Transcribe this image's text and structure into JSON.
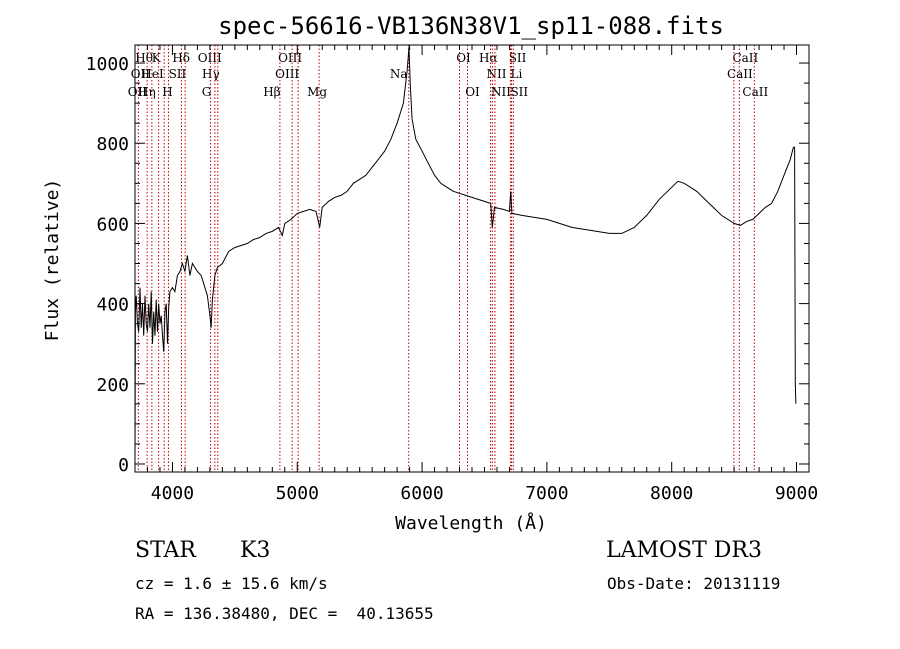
{
  "chart_data": {
    "type": "line",
    "title": "spec-56616-VB136N38V1_sp11-088.fits",
    "xlabel": "Wavelength (Å)",
    "ylabel": "Flux (relative)",
    "xlim": [
      3700,
      9100
    ],
    "ylim": [
      -20,
      1045
    ],
    "xticks": [
      4000,
      5000,
      6000,
      7000,
      8000,
      9000
    ],
    "yticks": [
      0,
      200,
      400,
      600,
      800,
      1000
    ],
    "grid": false,
    "series": [
      {
        "values": [
          [
            3700,
            0
          ],
          [
            3703,
            380
          ],
          [
            3710,
            420
          ],
          [
            3720,
            350
          ],
          [
            3730,
            330
          ],
          [
            3740,
            440
          ],
          [
            3750,
            340
          ],
          [
            3760,
            400
          ],
          [
            3770,
            320
          ],
          [
            3780,
            420
          ],
          [
            3790,
            350
          ],
          [
            3800,
            330
          ],
          [
            3810,
            400
          ],
          [
            3820,
            340
          ],
          [
            3830,
            430
          ],
          [
            3840,
            300
          ],
          [
            3850,
            380
          ],
          [
            3860,
            320
          ],
          [
            3870,
            410
          ],
          [
            3880,
            330
          ],
          [
            3890,
            400
          ],
          [
            3900,
            350
          ],
          [
            3910,
            370
          ],
          [
            3920,
            320
          ],
          [
            3930,
            280
          ],
          [
            3940,
            380
          ],
          [
            3950,
            400
          ],
          [
            3960,
            300
          ],
          [
            3970,
            390
          ],
          [
            3980,
            430
          ],
          [
            4000,
            440
          ],
          [
            4020,
            430
          ],
          [
            4040,
            470
          ],
          [
            4060,
            480
          ],
          [
            4080,
            500
          ],
          [
            4100,
            480
          ],
          [
            4120,
            520
          ],
          [
            4140,
            470
          ],
          [
            4160,
            500
          ],
          [
            4200,
            480
          ],
          [
            4230,
            470
          ],
          [
            4260,
            440
          ],
          [
            4280,
            420
          ],
          [
            4300,
            370
          ],
          [
            4310,
            340
          ],
          [
            4320,
            410
          ],
          [
            4340,
            470
          ],
          [
            4360,
            490
          ],
          [
            4400,
            500
          ],
          [
            4450,
            530
          ],
          [
            4500,
            540
          ],
          [
            4550,
            545
          ],
          [
            4600,
            550
          ],
          [
            4650,
            560
          ],
          [
            4700,
            565
          ],
          [
            4750,
            575
          ],
          [
            4800,
            580
          ],
          [
            4850,
            590
          ],
          [
            4880,
            570
          ],
          [
            4900,
            600
          ],
          [
            4950,
            610
          ],
          [
            5000,
            625
          ],
          [
            5050,
            630
          ],
          [
            5100,
            635
          ],
          [
            5150,
            630
          ],
          [
            5180,
            590
          ],
          [
            5200,
            640
          ],
          [
            5250,
            655
          ],
          [
            5300,
            665
          ],
          [
            5350,
            670
          ],
          [
            5400,
            680
          ],
          [
            5450,
            700
          ],
          [
            5500,
            710
          ],
          [
            5550,
            720
          ],
          [
            5600,
            740
          ],
          [
            5650,
            760
          ],
          [
            5700,
            780
          ],
          [
            5750,
            810
          ],
          [
            5800,
            850
          ],
          [
            5850,
            900
          ],
          [
            5880,
            980
          ],
          [
            5895,
            1040
          ],
          [
            5905,
            950
          ],
          [
            5920,
            860
          ],
          [
            5950,
            810
          ],
          [
            6000,
            780
          ],
          [
            6050,
            750
          ],
          [
            6100,
            720
          ],
          [
            6150,
            700
          ],
          [
            6200,
            690
          ],
          [
            6250,
            680
          ],
          [
            6300,
            675
          ],
          [
            6350,
            670
          ],
          [
            6400,
            665
          ],
          [
            6450,
            660
          ],
          [
            6500,
            655
          ],
          [
            6550,
            650
          ],
          [
            6563,
            590
          ],
          [
            6580,
            640
          ],
          [
            6650,
            635
          ],
          [
            6700,
            630
          ],
          [
            6710,
            680
          ],
          [
            6720,
            625
          ],
          [
            6800,
            620
          ],
          [
            6900,
            615
          ],
          [
            7000,
            610
          ],
          [
            7100,
            600
          ],
          [
            7200,
            590
          ],
          [
            7300,
            585
          ],
          [
            7400,
            580
          ],
          [
            7500,
            575
          ],
          [
            7600,
            575
          ],
          [
            7700,
            590
          ],
          [
            7800,
            620
          ],
          [
            7900,
            660
          ],
          [
            8000,
            690
          ],
          [
            8050,
            705
          ],
          [
            8100,
            700
          ],
          [
            8200,
            680
          ],
          [
            8300,
            650
          ],
          [
            8400,
            620
          ],
          [
            8500,
            600
          ],
          [
            8550,
            595
          ],
          [
            8600,
            605
          ],
          [
            8650,
            610
          ],
          [
            8700,
            625
          ],
          [
            8750,
            640
          ],
          [
            8800,
            650
          ],
          [
            8850,
            680
          ],
          [
            8900,
            720
          ],
          [
            8950,
            760
          ],
          [
            8975,
            790
          ],
          [
            8985,
            790
          ],
          [
            8990,
            200
          ],
          [
            8995,
            150
          ]
        ]
      }
    ],
    "line_markers": [
      {
        "label": "Hθ",
        "x": 3797,
        "row": 1,
        "dx": -3
      },
      {
        "label": "OII",
        "x": 3727,
        "row": 2,
        "dx": 2
      },
      {
        "label": "OII",
        "x": 3727,
        "row": 3,
        "dx": -1
      },
      {
        "label": "Hη",
        "x": 3835,
        "row": 3,
        "dx": -5
      },
      {
        "label": "K",
        "x": 3934,
        "row": 1,
        "dx": -8
      },
      {
        "label": "HeI",
        "x": 3889,
        "row": 2,
        "dx": -6
      },
      {
        "label": "H",
        "x": 3968,
        "row": 3,
        "dx": -1
      },
      {
        "label": "Hδ",
        "x": 4102,
        "row": 1,
        "dx": -4
      },
      {
        "label": "SII",
        "x": 4072,
        "row": 2,
        "dx": -4
      },
      {
        "label": "OIII",
        "x": 4363,
        "row": 1,
        "dx": -8
      },
      {
        "label": "Hγ",
        "x": 4340,
        "row": 2,
        "dx": -4
      },
      {
        "label": "G",
        "x": 4305,
        "row": 3,
        "dx": -4
      },
      {
        "label": "Hβ",
        "x": 4861,
        "row": 3,
        "dx": -8
      },
      {
        "label": "OIII",
        "x": 5007,
        "row": 1,
        "dx": -8
      },
      {
        "label": "OIII",
        "x": 4959,
        "row": 2,
        "dx": -5
      },
      {
        "label": "Mg",
        "x": 5175,
        "row": 3,
        "dx": -2
      },
      {
        "label": "Na",
        "x": 5893,
        "row": 2,
        "dx": -10
      },
      {
        "label": "OI",
        "x": 6300,
        "row": 1,
        "dx": 4
      },
      {
        "label": "OI",
        "x": 6364,
        "row": 3,
        "dx": 5
      },
      {
        "label": "Hα",
        "x": 6563,
        "row": 1,
        "dx": -4
      },
      {
        "label": "NII",
        "x": 6548,
        "row": 2,
        "dx": 6
      },
      {
        "label": "NII",
        "x": 6584,
        "row": 3,
        "dx": 6
      },
      {
        "label": "SII",
        "x": 6717,
        "row": 1,
        "dx": 6
      },
      {
        "label": "Li",
        "x": 6708,
        "row": 2,
        "dx": 6
      },
      {
        "label": "SII",
        "x": 6731,
        "row": 3,
        "dx": 6
      },
      {
        "label": "CaII",
        "x": 8542,
        "row": 1,
        "dx": 6
      },
      {
        "label": "CaII",
        "x": 8498,
        "row": 2,
        "dx": 6
      },
      {
        "label": "CaII",
        "x": 8662,
        "row": 3,
        "dx": 1
      }
    ]
  },
  "info": {
    "class": "STAR",
    "subclass": "K3",
    "survey": "LAMOST DR3",
    "cz": "cz = 1.6 ± 15.6 km/s",
    "obs_date": "Obs-Date: 20131119",
    "radec": "RA = 136.38480, DEC =  40.13655"
  }
}
